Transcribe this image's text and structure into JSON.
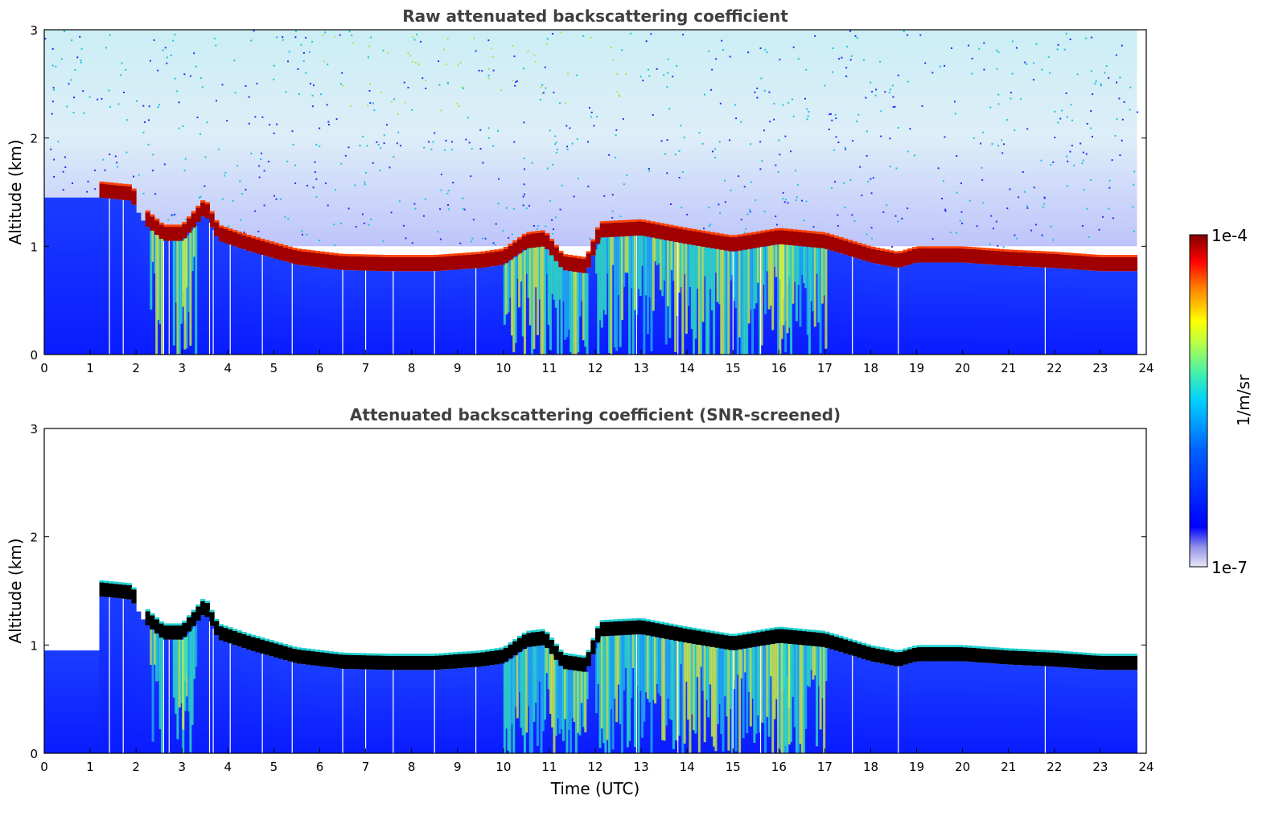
{
  "chart_data": [
    {
      "type": "heatmap",
      "title": "Raw attenuated backscattering coefficient",
      "xlabel": "",
      "ylabel": "Altitude (km)",
      "xlim": [
        0,
        24
      ],
      "ylim": [
        0,
        3
      ],
      "xticks": [
        "0",
        "1",
        "2",
        "3",
        "4",
        "5",
        "6",
        "7",
        "8",
        "9",
        "10",
        "11",
        "12",
        "13",
        "14",
        "15",
        "16",
        "17",
        "18",
        "19",
        "20",
        "21",
        "22",
        "23",
        "24"
      ],
      "yticks": [
        "0",
        "1",
        "2",
        "3"
      ],
      "screened": false,
      "data_end_hour": 23.8,
      "cloud_base_km": [
        [
          1.2,
          1.45
        ],
        [
          1.9,
          1.42
        ],
        [
          2.2,
          1.2
        ],
        [
          2.6,
          1.05
        ],
        [
          3.0,
          1.05
        ],
        [
          3.5,
          1.3
        ],
        [
          3.8,
          1.05
        ],
        [
          4.5,
          0.95
        ],
        [
          5.5,
          0.83
        ],
        [
          6.5,
          0.78
        ],
        [
          7.5,
          0.77
        ],
        [
          8.5,
          0.77
        ],
        [
          9.5,
          0.8
        ],
        [
          10.0,
          0.83
        ],
        [
          10.5,
          0.98
        ],
        [
          10.9,
          1.0
        ],
        [
          11.3,
          0.78
        ],
        [
          11.8,
          0.75
        ],
        [
          12.1,
          1.08
        ],
        [
          13.0,
          1.1
        ],
        [
          14.0,
          1.02
        ],
        [
          15.0,
          0.95
        ],
        [
          16.0,
          1.02
        ],
        [
          17.0,
          0.98
        ],
        [
          18.0,
          0.85
        ],
        [
          18.6,
          0.8
        ],
        [
          19.0,
          0.85
        ],
        [
          20.0,
          0.85
        ],
        [
          21.0,
          0.82
        ],
        [
          22.0,
          0.8
        ],
        [
          23.0,
          0.77
        ],
        [
          23.8,
          0.77
        ]
      ]
    },
    {
      "type": "heatmap",
      "title": "Attenuated backscattering coefficient (SNR-screened)",
      "xlabel": "Time (UTC)",
      "ylabel": "Altitude (km)",
      "xlim": [
        0,
        24
      ],
      "ylim": [
        0,
        3
      ],
      "xticks": [
        "0",
        "1",
        "2",
        "3",
        "4",
        "5",
        "6",
        "7",
        "8",
        "9",
        "10",
        "11",
        "12",
        "13",
        "14",
        "15",
        "16",
        "17",
        "18",
        "19",
        "20",
        "21",
        "22",
        "23",
        "24"
      ],
      "yticks": [
        "0",
        "1",
        "2",
        "3"
      ],
      "screened": true,
      "data_end_hour": 23.8
    }
  ],
  "colorbar": {
    "label": "1/m/sr",
    "max_label": "1e-4",
    "min_label": "1e-7",
    "colormap": [
      "#e8e8f8",
      "#b8b8f0",
      "#0000ff",
      "#0050ff",
      "#00c0ff",
      "#40e0c0",
      "#c0ff40",
      "#ffff00",
      "#ff8000",
      "#ff0000",
      "#c00000",
      "#800000"
    ]
  }
}
